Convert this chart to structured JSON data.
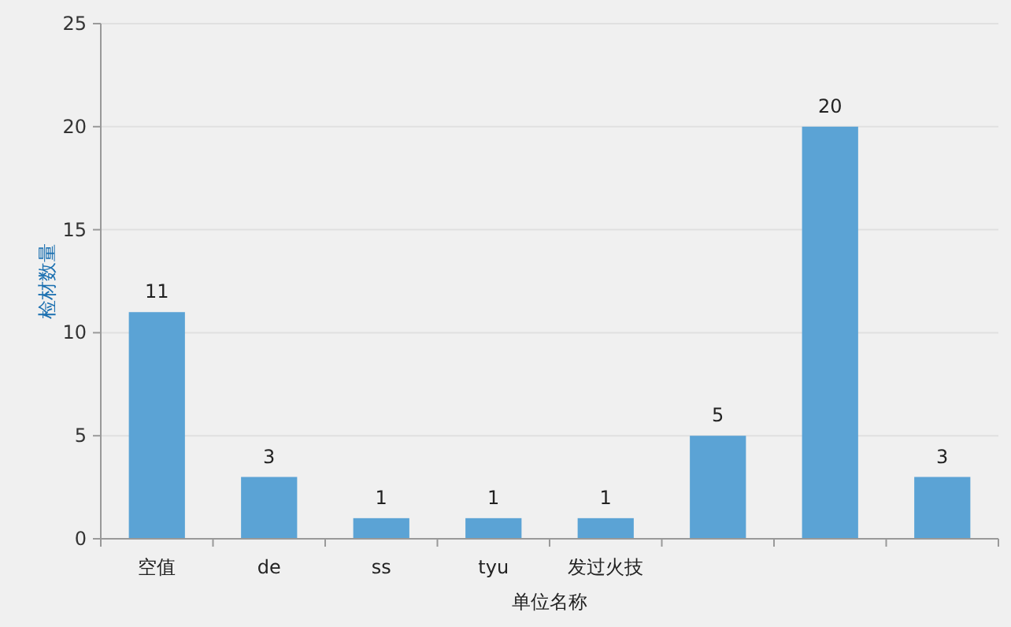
{
  "chart_data": {
    "type": "bar",
    "xlabel": "单位名称",
    "ylabel": "检材数量",
    "categories": [
      "空值",
      "de",
      "ss",
      "tyu",
      "发过火技",
      null,
      null,
      null
    ],
    "values": [
      11,
      3,
      1,
      1,
      1,
      5,
      20,
      3
    ],
    "color": "#5ba3d5",
    "ylim": [
      0,
      25
    ],
    "yticks": [
      0,
      5,
      10,
      15,
      20,
      25
    ],
    "grid": "y",
    "data_labels": true
  }
}
